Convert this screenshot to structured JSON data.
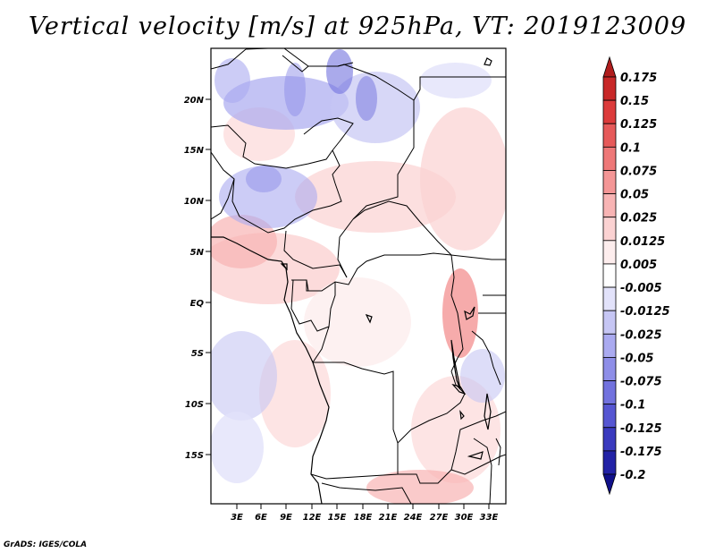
{
  "title": "Vertical velocity [m/s] at 925hPa, VT: 2019123009",
  "credit": "GrADS: IGES/COLA",
  "map": {
    "lat_labels": [
      "20N",
      "15N",
      "10N",
      "5N",
      "EQ",
      "5S",
      "10S",
      "15S"
    ],
    "lon_labels": [
      "3E",
      "6E",
      "9E",
      "12E",
      "15E",
      "18E",
      "21E",
      "24E",
      "27E",
      "30E",
      "33E"
    ]
  },
  "colorbar": {
    "levels": [
      "0.175",
      "0.15",
      "0.125",
      "0.1",
      "0.075",
      "0.05",
      "0.025",
      "0.0125",
      "0.005",
      "-0.005",
      "-0.0125",
      "-0.025",
      "-0.05",
      "-0.075",
      "-0.1",
      "-0.125",
      "-0.175",
      "-0.2"
    ],
    "colors": [
      "#b01d1d",
      "#c82828",
      "#dc3b3b",
      "#e65a5a",
      "#ee7878",
      "#f49696",
      "#f8b4b4",
      "#fbd2d2",
      "#fdeded",
      "#ffffff",
      "#e2e2fa",
      "#c6c6f4",
      "#aaaaf0",
      "#8e8ee8",
      "#7272de",
      "#5656d2",
      "#3a3abe",
      "#2222a6",
      "#10108a"
    ]
  }
}
